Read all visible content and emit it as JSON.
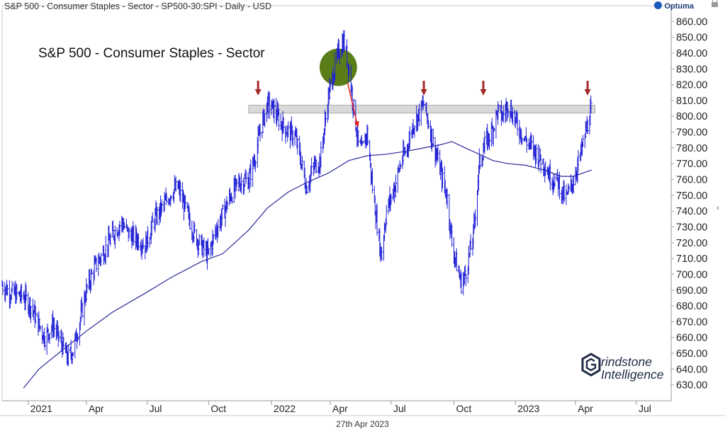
{
  "header": {
    "instrument": "S&P 500 - Consumer Staples - Sector - SP500-30:SPI - Daily - USD",
    "brand": "Optuma"
  },
  "footer": {
    "date": "27th Apr 2023"
  },
  "logo": {
    "line1": "rindstone",
    "line2": "Intelligence"
  },
  "colors": {
    "price": "#1f1fd6",
    "moving_average": "#2a2a9a",
    "resistance_band": "#d9d9d9",
    "arrow_marker": "#a52a2a",
    "highlight_circle": "#5a7d1a",
    "breakdown_arrow": "#e8201a",
    "axis_text": "#222222"
  },
  "chart_data": {
    "type": "line",
    "title": "S&P 500 - Consumer Staples - Sector",
    "xlabel": "",
    "ylabel": "",
    "ylim": [
      620,
      870
    ],
    "y_ticks": [
      630,
      640,
      650,
      660,
      670,
      680,
      690,
      700,
      710,
      720,
      730,
      740,
      750,
      760,
      770,
      780,
      790,
      800,
      810,
      820,
      830,
      840,
      850,
      860
    ],
    "y_tick_labels": [
      "630.00",
      "640.00",
      "650.00",
      "660.00",
      "670.00",
      "680.00",
      "690.00",
      "700.00",
      "710.00",
      "720.00",
      "730.00",
      "740.00",
      "750.00",
      "760.00",
      "770.00",
      "780.00",
      "790.00",
      "800.00",
      "810.00",
      "820.00",
      "830.00",
      "840.00",
      "850.00",
      "860.00"
    ],
    "x_range": [
      "2020-11-26",
      "2023-08-24"
    ],
    "x_ticks": [
      {
        "label": "2021",
        "date": "2021-01-04"
      },
      {
        "label": "Apr",
        "date": "2021-04-01"
      },
      {
        "label": "Jul",
        "date": "2021-07-01"
      },
      {
        "label": "Oct",
        "date": "2021-10-01"
      },
      {
        "label": "2022",
        "date": "2022-01-03"
      },
      {
        "label": "Apr",
        "date": "2022-04-01"
      },
      {
        "label": "Jul",
        "date": "2022-07-01"
      },
      {
        "label": "Oct",
        "date": "2022-10-03"
      },
      {
        "label": "2023",
        "date": "2023-01-03"
      },
      {
        "label": "Apr",
        "date": "2023-04-03"
      },
      {
        "label": "Jul",
        "date": "2023-07-03"
      }
    ],
    "grid": false,
    "legend": "none",
    "series": [
      {
        "style": "price-bars",
        "x": [
          "2020-11-26",
          "2020-12-10",
          "2020-12-28",
          "2021-01-08",
          "2021-01-20",
          "2021-01-29",
          "2021-02-10",
          "2021-02-24",
          "2021-03-04",
          "2021-03-12",
          "2021-03-22",
          "2021-04-01",
          "2021-04-14",
          "2021-04-28",
          "2021-05-10",
          "2021-05-24",
          "2021-06-04",
          "2021-06-18",
          "2021-06-28",
          "2021-07-12",
          "2021-07-28",
          "2021-08-06",
          "2021-08-16",
          "2021-08-27",
          "2021-09-10",
          "2021-09-20",
          "2021-09-30",
          "2021-10-12",
          "2021-10-22",
          "2021-11-03",
          "2021-11-15",
          "2021-11-30",
          "2021-12-08",
          "2021-12-17",
          "2021-12-28",
          "2022-01-05",
          "2022-01-18",
          "2022-01-28",
          "2022-02-07",
          "2022-02-17",
          "2022-02-24",
          "2022-03-07",
          "2022-03-17",
          "2022-03-29",
          "2022-04-06",
          "2022-04-13",
          "2022-04-21",
          "2022-04-29",
          "2022-05-06",
          "2022-05-13",
          "2022-05-18",
          "2022-05-26",
          "2022-06-03",
          "2022-06-16",
          "2022-06-24",
          "2022-07-06",
          "2022-07-15",
          "2022-07-26",
          "2022-08-03",
          "2022-08-10",
          "2022-08-19",
          "2022-09-01",
          "2022-09-13",
          "2022-09-23",
          "2022-09-30",
          "2022-10-07",
          "2022-10-14",
          "2022-10-20",
          "2022-11-01",
          "2022-11-10",
          "2022-11-18",
          "2022-11-30",
          "2022-12-07",
          "2022-12-15",
          "2022-12-23",
          "2023-01-05",
          "2023-01-18",
          "2023-02-01",
          "2023-02-15",
          "2023-02-24",
          "2023-03-09",
          "2023-03-13",
          "2023-03-20",
          "2023-03-31",
          "2023-04-12",
          "2023-04-18",
          "2023-04-21",
          "2023-04-27"
        ],
        "values": [
          693,
          688,
          686,
          680,
          668,
          660,
          668,
          655,
          647,
          652,
          670,
          690,
          705,
          715,
          725,
          733,
          725,
          722,
          718,
          735,
          745,
          752,
          755,
          742,
          725,
          718,
          712,
          728,
          738,
          750,
          758,
          760,
          772,
          790,
          808,
          805,
          795,
          790,
          788,
          770,
          755,
          768,
          772,
          812,
          828,
          840,
          848,
          830,
          805,
          782,
          778,
          790,
          755,
          712,
          740,
          755,
          770,
          782,
          795,
          800,
          808,
          785,
          765,
          748,
          720,
          706,
          694,
          700,
          725,
          770,
          782,
          792,
          803,
          800,
          808,
          795,
          785,
          778,
          770,
          762,
          758,
          752,
          748,
          760,
          778,
          790,
          795,
          805
        ]
      },
      {
        "name": "",
        "style": "moving-average",
        "x": [
          "2020-12-28",
          "2021-01-20",
          "2021-02-24",
          "2021-04-01",
          "2021-05-10",
          "2021-06-28",
          "2021-08-06",
          "2021-09-20",
          "2021-10-22",
          "2021-11-30",
          "2021-12-28",
          "2022-01-28",
          "2022-02-24",
          "2022-03-29",
          "2022-04-29",
          "2022-05-26",
          "2022-06-24",
          "2022-07-26",
          "2022-08-19",
          "2022-09-13",
          "2022-09-30",
          "2022-10-20",
          "2022-11-10",
          "2022-11-30",
          "2022-12-23",
          "2023-01-18",
          "2023-02-15",
          "2023-03-13",
          "2023-03-31",
          "2023-04-27"
        ],
        "values": [
          628,
          640,
          652,
          664,
          676,
          688,
          698,
          708,
          713,
          728,
          742,
          752,
          758,
          764,
          772,
          775,
          776,
          778,
          780,
          782,
          784,
          780,
          776,
          772,
          770,
          769,
          766,
          762,
          762,
          766
        ]
      }
    ],
    "annotations": {
      "resistance_zone": {
        "y_low": 802,
        "y_high": 807,
        "x_start": "2021-11-30",
        "x_end": "2023-05-02"
      },
      "peak_markers": [
        "2021-12-14",
        "2022-08-19",
        "2022-11-16",
        "2023-04-21"
      ],
      "highlight_circle": {
        "center_date": "2022-04-13",
        "center_value": 831,
        "radius_days": 28
      },
      "breakdown_arrow": {
        "from_date": "2022-04-27",
        "from_value": 821,
        "to_date": "2022-05-13",
        "to_value": 793
      }
    }
  }
}
